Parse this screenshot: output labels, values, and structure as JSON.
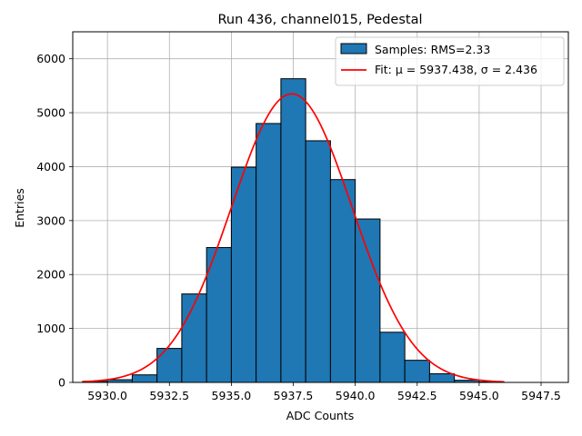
{
  "chart_data": {
    "type": "bar",
    "title": "Run 436, channel015, Pedestal",
    "xlabel": "ADC Counts",
    "ylabel": "Entries",
    "xlim": [
      5928.6,
      5948.6
    ],
    "ylim": [
      0,
      6500
    ],
    "grid": true,
    "legend_position": "top-right",
    "xticks": [
      5930.0,
      5932.5,
      5935.0,
      5937.5,
      5940.0,
      5942.5,
      5945.0,
      5947.5
    ],
    "xtick_labels": [
      "5930.0",
      "5932.5",
      "5935.0",
      "5937.5",
      "5940.0",
      "5942.5",
      "5945.0",
      "5947.5"
    ],
    "yticks": [
      0,
      1000,
      2000,
      3000,
      4000,
      5000,
      6000
    ],
    "ytick_labels": [
      "0",
      "1000",
      "2000",
      "3000",
      "4000",
      "5000",
      "6000"
    ],
    "bin_edges": [
      5929,
      5930,
      5931,
      5932,
      5933,
      5934,
      5935,
      5936,
      5937,
      5938,
      5939,
      5940,
      5941,
      5942,
      5943,
      5944,
      5945,
      5946
    ],
    "histogram": {
      "name": "Samples: RMS=2.33",
      "color": "#1f77b4",
      "values": [
        20,
        50,
        140,
        630,
        1640,
        2500,
        3990,
        4800,
        5630,
        4480,
        3760,
        3030,
        930,
        410,
        160,
        40,
        10
      ]
    },
    "fit": {
      "name": "Fit: μ = 5937.438, σ = 2.436",
      "color": "#ff0000",
      "mu": 5937.438,
      "sigma": 2.436,
      "amplitude": 5350,
      "x_range": [
        5929,
        5946
      ]
    }
  }
}
